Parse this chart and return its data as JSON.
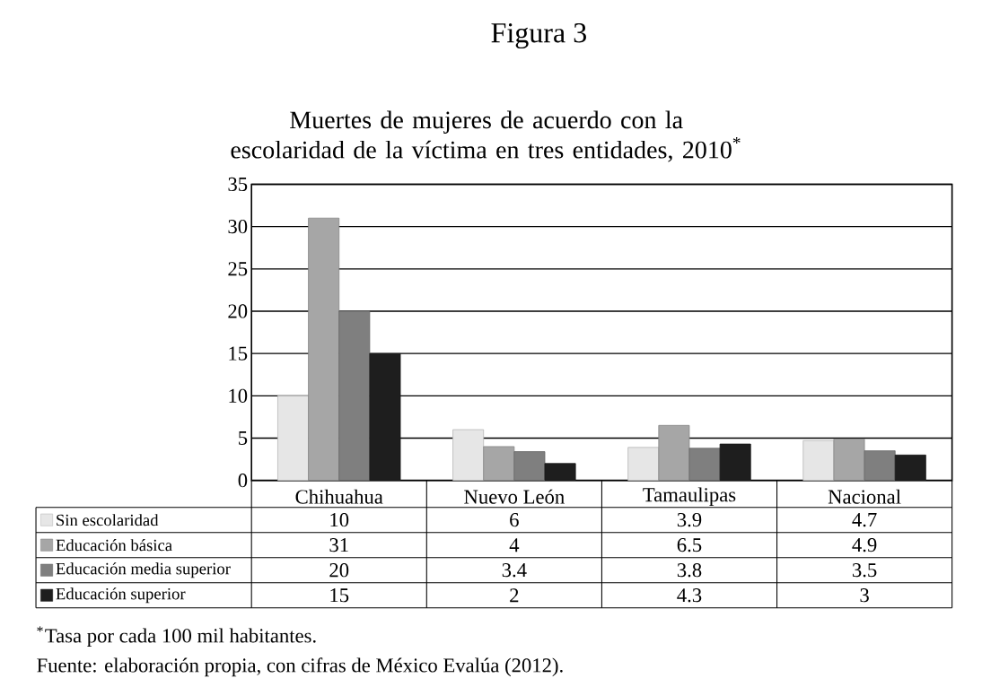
{
  "chart_data": {
    "type": "bar",
    "title": "Figura 3",
    "subtitle": "Muertes de mujeres de acuerdo con la escolaridad de la víctima en tres entidades, 2010$^{*}$",
    "categories": [
      "Chihuahua",
      "Nuevo León",
      "Tamaulipas",
      "Nacional"
    ],
    "series": [
      {
        "name": "Sin escolaridad",
        "color": "#e6e6e6",
        "values": [
          10,
          6,
          3.9,
          4.7
        ]
      },
      {
        "name": "Educación básica",
        "color": "#a6a6a6",
        "values": [
          31,
          4,
          6.5,
          4.9
        ]
      },
      {
        "name": "Educación media superior",
        "color": "#7f7f7f",
        "values": [
          20,
          3.4,
          3.8,
          3.5
        ]
      },
      {
        "name": "Educación superior",
        "color": "#1e1e1e",
        "values": [
          15,
          2,
          4.3,
          3
        ]
      }
    ],
    "ylim": [
      0,
      35
    ],
    "yticks": [
      0,
      5,
      10,
      15,
      20,
      25,
      30,
      35
    ],
    "grid": "y",
    "legend": "bottom",
    "data_labels": true,
    "annotations": [
      "$^{*}$Tasa por cada 100 mil habitantes.",
      "Fuente: elaboración propia, con cifras de México Evalúa (2012)."
    ]
  }
}
